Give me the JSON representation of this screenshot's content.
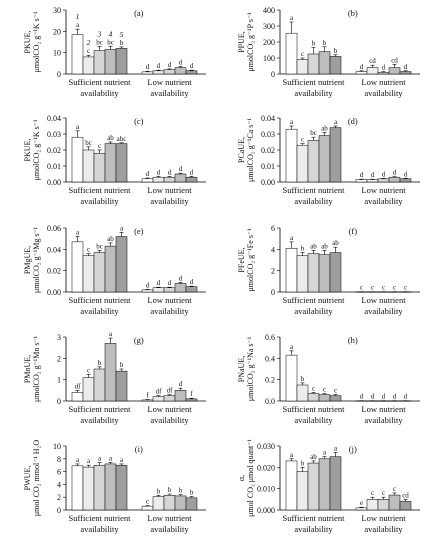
{
  "chart_data": [
    {
      "type": "bar",
      "panel": "(a)",
      "ylabel": [
        "PKUE,",
        "μmolCO₂ g⁻¹K s⁻¹"
      ],
      "ylim": [
        0,
        30
      ],
      "yticks": [
        "0",
        "10",
        "20",
        "30"
      ],
      "categories": [
        "Sufficient nutrient availability",
        "Low nutrient availability"
      ],
      "bar_ids": [
        "1",
        "2",
        "3",
        "4",
        "5"
      ],
      "series": [
        {
          "name": "1",
          "values": [
            18.5,
            1.0
          ],
          "errors": [
            2.5,
            0.3
          ],
          "letters": [
            "a",
            "d"
          ]
        },
        {
          "name": "2",
          "values": [
            8.0,
            1.5
          ],
          "errors": [
            0.8,
            0.3
          ],
          "letters": [
            "c",
            "d"
          ]
        },
        {
          "name": "3",
          "values": [
            11.0,
            2.0
          ],
          "errors": [
            2.0,
            0.4
          ],
          "letters": [
            "bc",
            "d"
          ]
        },
        {
          "name": "4",
          "values": [
            11.5,
            3.0
          ],
          "errors": [
            1.5,
            0.5
          ],
          "letters": [
            "bc",
            "d"
          ]
        },
        {
          "name": "5",
          "values": [
            12.0,
            1.5
          ],
          "errors": [
            0.7,
            0.3
          ],
          "letters": [
            "b",
            "d"
          ]
        }
      ]
    },
    {
      "type": "bar",
      "panel": "(b)",
      "ylabel": [
        "PPUE,",
        "μmolCO₂ g⁻¹P s⁻¹"
      ],
      "ylim": [
        0,
        400
      ],
      "yticks": [
        "0",
        "100",
        "200",
        "300",
        "400"
      ],
      "categories": [
        "Sufficient nutrient availability",
        "Low nutrient availability"
      ],
      "series": [
        {
          "name": "1",
          "values": [
            255,
            15
          ],
          "errors": [
            70,
            5
          ],
          "letters": [
            "a",
            "d"
          ]
        },
        {
          "name": "2",
          "values": [
            90,
            40
          ],
          "errors": [
            10,
            15
          ],
          "letters": [
            "c",
            "cd"
          ]
        },
        {
          "name": "3",
          "values": [
            125,
            10
          ],
          "errors": [
            40,
            5
          ],
          "letters": [
            "b",
            "d"
          ]
        },
        {
          "name": "4",
          "values": [
            140,
            40
          ],
          "errors": [
            30,
            20
          ],
          "letters": [
            "b",
            "cd"
          ]
        },
        {
          "name": "5",
          "values": [
            110,
            15
          ],
          "errors": [
            10,
            5
          ],
          "letters": [
            "b",
            "d"
          ]
        }
      ]
    },
    {
      "type": "bar",
      "panel": "(c)",
      "ylabel": [
        "PKUE,",
        "μmolCO₂ g⁻¹K s⁻¹"
      ],
      "ylim": [
        0,
        0.04
      ],
      "yticks": [
        "0.00",
        "0.01",
        "0.02",
        "0.03",
        "0.04"
      ],
      "categories": [
        "Sufficient nutrient availability",
        "Low nutrient availability"
      ],
      "series": [
        {
          "name": "1",
          "values": [
            0.028,
            0.002
          ],
          "errors": [
            0.004,
            0.0005
          ],
          "letters": [
            "a",
            "d"
          ]
        },
        {
          "name": "2",
          "values": [
            0.02,
            0.003
          ],
          "errors": [
            0.002,
            0.0005
          ],
          "letters": [
            "bc",
            "d"
          ]
        },
        {
          "name": "3",
          "values": [
            0.018,
            0.003
          ],
          "errors": [
            0.002,
            0.0005
          ],
          "letters": [
            "c",
            "d"
          ]
        },
        {
          "name": "4",
          "values": [
            0.024,
            0.005
          ],
          "errors": [
            0.001,
            0.0005
          ],
          "letters": [
            "ab",
            "d"
          ]
        },
        {
          "name": "5",
          "values": [
            0.024,
            0.003
          ],
          "errors": [
            0.0005,
            0.0005
          ],
          "letters": [
            "abc",
            "d"
          ]
        }
      ]
    },
    {
      "type": "bar",
      "panel": "(d)",
      "ylabel": [
        "PCaUE,",
        "μmolCO₂ g⁻¹Ca s⁻¹"
      ],
      "ylim": [
        0,
        0.04
      ],
      "yticks": [
        "0.00",
        "0.01",
        "0.02",
        "0.03",
        "0.04"
      ],
      "categories": [
        "Sufficient nutrient availability",
        "Low nutrient availability"
      ],
      "series": [
        {
          "name": "1",
          "values": [
            0.033,
            0.0015
          ],
          "errors": [
            0.002,
            0.0003
          ],
          "letters": [
            "a",
            "d"
          ]
        },
        {
          "name": "2",
          "values": [
            0.023,
            0.0015
          ],
          "errors": [
            0.001,
            0.0003
          ],
          "letters": [
            "c",
            "d"
          ]
        },
        {
          "name": "3",
          "values": [
            0.026,
            0.002
          ],
          "errors": [
            0.002,
            0.0003
          ],
          "letters": [
            "bc",
            "d"
          ]
        },
        {
          "name": "4",
          "values": [
            0.029,
            0.003
          ],
          "errors": [
            0.002,
            0.0003
          ],
          "letters": [
            "ab",
            "d"
          ]
        },
        {
          "name": "5",
          "values": [
            0.034,
            0.002
          ],
          "errors": [
            0.001,
            0.0003
          ],
          "letters": [
            "a",
            "d"
          ]
        }
      ]
    },
    {
      "type": "bar",
      "panel": "(e)",
      "ylabel": [
        "PMgUE,",
        "μmolCO₂ g⁻¹Mg s⁻¹"
      ],
      "ylim": [
        0,
        0.06
      ],
      "yticks": [
        "0.00",
        "0.02",
        "0.04",
        "0.06"
      ],
      "categories": [
        "Sufficient nutrient availability",
        "Low nutrient availability"
      ],
      "series": [
        {
          "name": "1",
          "values": [
            0.047,
            0.002
          ],
          "errors": [
            0.005,
            0.0005
          ],
          "letters": [
            "a",
            "d"
          ]
        },
        {
          "name": "2",
          "values": [
            0.034,
            0.004
          ],
          "errors": [
            0.002,
            0.0005
          ],
          "letters": [
            "c",
            "d"
          ]
        },
        {
          "name": "3",
          "values": [
            0.037,
            0.004
          ],
          "errors": [
            0.002,
            0.0005
          ],
          "letters": [
            "bc",
            "d"
          ]
        },
        {
          "name": "4",
          "values": [
            0.043,
            0.008
          ],
          "errors": [
            0.003,
            0.001
          ],
          "letters": [
            "ab",
            "d"
          ]
        },
        {
          "name": "5",
          "values": [
            0.052,
            0.005
          ],
          "errors": [
            0.004,
            0.0005
          ],
          "letters": [
            "a",
            "d"
          ]
        }
      ]
    },
    {
      "type": "bar",
      "panel": "(f)",
      "ylabel": [
        "PFeUE,",
        "μmolCO₂ g⁻¹Fe s⁻¹"
      ],
      "ylim": [
        0,
        6
      ],
      "yticks": [
        "0",
        "2",
        "4",
        "6"
      ],
      "categories": [
        "Sufficient nutrient availability",
        "Low nutrient availability"
      ],
      "series": [
        {
          "name": "1",
          "values": [
            4.1,
            0.02
          ],
          "errors": [
            0.6,
            0.01
          ],
          "letters": [
            "a",
            "c"
          ]
        },
        {
          "name": "2",
          "values": [
            3.4,
            0.02
          ],
          "errors": [
            0.3,
            0.01
          ],
          "letters": [
            "b",
            "c"
          ]
        },
        {
          "name": "3",
          "values": [
            3.6,
            0.02
          ],
          "errors": [
            0.3,
            0.01
          ],
          "letters": [
            "ab",
            "c"
          ]
        },
        {
          "name": "4",
          "values": [
            3.5,
            0.02
          ],
          "errors": [
            0.4,
            0.01
          ],
          "letters": [
            "ab",
            "c"
          ]
        },
        {
          "name": "5",
          "values": [
            3.7,
            0.02
          ],
          "errors": [
            0.5,
            0.01
          ],
          "letters": [
            "ab",
            "c"
          ]
        }
      ]
    },
    {
      "type": "bar",
      "panel": "(g)",
      "ylabel": [
        "PMnUE,",
        "μmolCO₂ g⁻¹Mn s⁻¹"
      ],
      "ylim": [
        0,
        3
      ],
      "yticks": [
        "0",
        "1",
        "2",
        "3"
      ],
      "categories": [
        "Sufficient nutrient availability",
        "Low nutrient availability"
      ],
      "series": [
        {
          "name": "1",
          "values": [
            0.4,
            0.05
          ],
          "errors": [
            0.1,
            0.02
          ],
          "letters": [
            "df",
            "f"
          ]
        },
        {
          "name": "2",
          "values": [
            1.1,
            0.2
          ],
          "errors": [
            0.15,
            0.05
          ],
          "letters": [
            "c",
            "df"
          ]
        },
        {
          "name": "3",
          "values": [
            1.5,
            0.25
          ],
          "errors": [
            0.1,
            0.05
          ],
          "letters": [
            "b",
            "df"
          ]
        },
        {
          "name": "4",
          "values": [
            2.7,
            0.5
          ],
          "errors": [
            0.25,
            0.1
          ],
          "letters": [
            "a",
            "d"
          ]
        },
        {
          "name": "5",
          "values": [
            1.4,
            0.1
          ],
          "errors": [
            0.1,
            0.03
          ],
          "letters": [
            "b",
            "f"
          ]
        }
      ]
    },
    {
      "type": "bar",
      "panel": "(h)",
      "ylabel": [
        "PNaUE,",
        "μmolCO₂ g⁻¹Na s⁻¹"
      ],
      "ylim": [
        0,
        0.6
      ],
      "yticks": [
        "0.0",
        "0.2",
        "0.4",
        "0.6"
      ],
      "categories": [
        "Sufficient nutrient availability",
        "Low nutrient availability"
      ],
      "series": [
        {
          "name": "1",
          "values": [
            0.43,
            0.002
          ],
          "errors": [
            0.04,
            0.001
          ],
          "letters": [
            "a",
            "d"
          ]
        },
        {
          "name": "2",
          "values": [
            0.15,
            0.002
          ],
          "errors": [
            0.02,
            0.001
          ],
          "letters": [
            "b",
            "d"
          ]
        },
        {
          "name": "3",
          "values": [
            0.07,
            0.002
          ],
          "errors": [
            0.01,
            0.001
          ],
          "letters": [
            "c",
            "d"
          ]
        },
        {
          "name": "4",
          "values": [
            0.06,
            0.002
          ],
          "errors": [
            0.01,
            0.001
          ],
          "letters": [
            "c",
            "d"
          ]
        },
        {
          "name": "5",
          "values": [
            0.05,
            0.002
          ],
          "errors": [
            0.01,
            0.001
          ],
          "letters": [
            "c",
            "d"
          ]
        }
      ]
    },
    {
      "type": "bar",
      "panel": "(i)",
      "ylabel": [
        "PWUE,",
        "μmol CO₂ mmol⁻¹ H₂O"
      ],
      "ylim": [
        0,
        10
      ],
      "yticks": [
        "0",
        "2",
        "4",
        "6",
        "8",
        "10"
      ],
      "categories": [
        "Sufficient nutrient availability",
        "Low nutrient availability"
      ],
      "series": [
        {
          "name": "1",
          "values": [
            6.9,
            0.6
          ],
          "errors": [
            0.3,
            0.1
          ],
          "letters": [
            "a",
            "c"
          ]
        },
        {
          "name": "2",
          "values": [
            6.7,
            2.1
          ],
          "errors": [
            0.3,
            0.2
          ],
          "letters": [
            "a",
            "b"
          ]
        },
        {
          "name": "3",
          "values": [
            7.0,
            2.3
          ],
          "errors": [
            0.4,
            0.2
          ],
          "letters": [
            "a",
            "b"
          ]
        },
        {
          "name": "4",
          "values": [
            7.2,
            2.2
          ],
          "errors": [
            0.2,
            0.2
          ],
          "letters": [
            "a",
            "b"
          ]
        },
        {
          "name": "5",
          "values": [
            7.0,
            1.9
          ],
          "errors": [
            0.2,
            0.2
          ],
          "letters": [
            "a",
            "b"
          ]
        }
      ]
    },
    {
      "type": "bar",
      "panel": "(j)",
      "ylabel": [
        "α,",
        "μmol CO₂ μmol quant⁻¹"
      ],
      "ylim": [
        0,
        0.03
      ],
      "yticks": [
        "0.000",
        "0.010",
        "0.020",
        "0.030"
      ],
      "categories": [
        "Sufficient nutrient availability",
        "Low nutrient availability"
      ],
      "series": [
        {
          "name": "1",
          "values": [
            0.023,
            0.001
          ],
          "errors": [
            0.001,
            0.0003
          ],
          "letters": [
            "a",
            "e"
          ]
        },
        {
          "name": "2",
          "values": [
            0.018,
            0.005
          ],
          "errors": [
            0.002,
            0.001
          ],
          "letters": [
            "b",
            "c"
          ]
        },
        {
          "name": "3",
          "values": [
            0.022,
            0.005
          ],
          "errors": [
            0.001,
            0.001
          ],
          "letters": [
            "ab",
            "c"
          ]
        },
        {
          "name": "4",
          "values": [
            0.024,
            0.007
          ],
          "errors": [
            0.001,
            0.001
          ],
          "letters": [
            "a",
            "c"
          ]
        },
        {
          "name": "5",
          "values": [
            0.025,
            0.004
          ],
          "errors": [
            0.002,
            0.001
          ],
          "letters": [
            "a",
            "cd"
          ]
        }
      ]
    }
  ],
  "colors": {
    "bar_fills": [
      "#ffffff",
      "#ececec",
      "#d6d6d6",
      "#bdbdbd",
      "#9e9e9e"
    ],
    "stroke": "#000000"
  }
}
